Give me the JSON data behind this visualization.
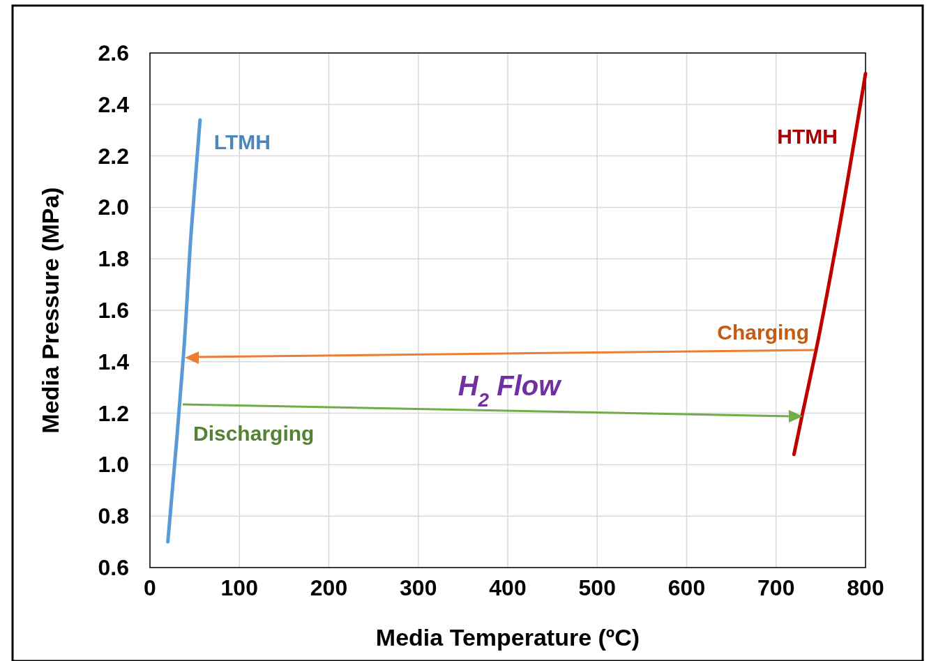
{
  "chart_data": {
    "type": "line",
    "xlabel": "Media Temperature (ºC)",
    "ylabel": "Media Pressure (MPa)",
    "xlim": [
      0,
      800
    ],
    "xticks": [
      0,
      100,
      200,
      300,
      400,
      500,
      600,
      700,
      800
    ],
    "ylim": [
      0.6,
      2.6
    ],
    "yticks": [
      {
        "value": 0.6,
        "label": "0.6"
      },
      {
        "value": 0.8,
        "label": "0.8"
      },
      {
        "value": 1.0,
        "label": "1.0"
      },
      {
        "value": 1.2,
        "label": "1.2"
      },
      {
        "value": 1.4,
        "label": "1.4"
      },
      {
        "value": 1.6,
        "label": "1.6"
      },
      {
        "value": 1.8,
        "label": "1.8"
      },
      {
        "value": 2.0,
        "label": "2.0"
      },
      {
        "value": 2.2,
        "label": "2.2"
      },
      {
        "value": 2.4,
        "label": "2.4"
      },
      {
        "value": 2.6,
        "label": "2.6"
      }
    ],
    "grid": true,
    "marker": "none",
    "line_style": "solid",
    "series": [
      {
        "name": "LTMH",
        "color": "#5b9bd5",
        "x": [
          20,
          30,
          38,
          46,
          56
        ],
        "values": [
          0.7,
          1.1,
          1.45,
          1.9,
          2.34
        ]
      },
      {
        "name": "HTMH",
        "color": "#c00000",
        "x": [
          720,
          729,
          745,
          768,
          800
        ],
        "values": [
          1.04,
          1.19,
          1.45,
          1.87,
          2.52
        ]
      }
    ],
    "annotations": [
      "Charging",
      "H$_{2}$ Flow",
      "Discharging"
    ]
  }
}
